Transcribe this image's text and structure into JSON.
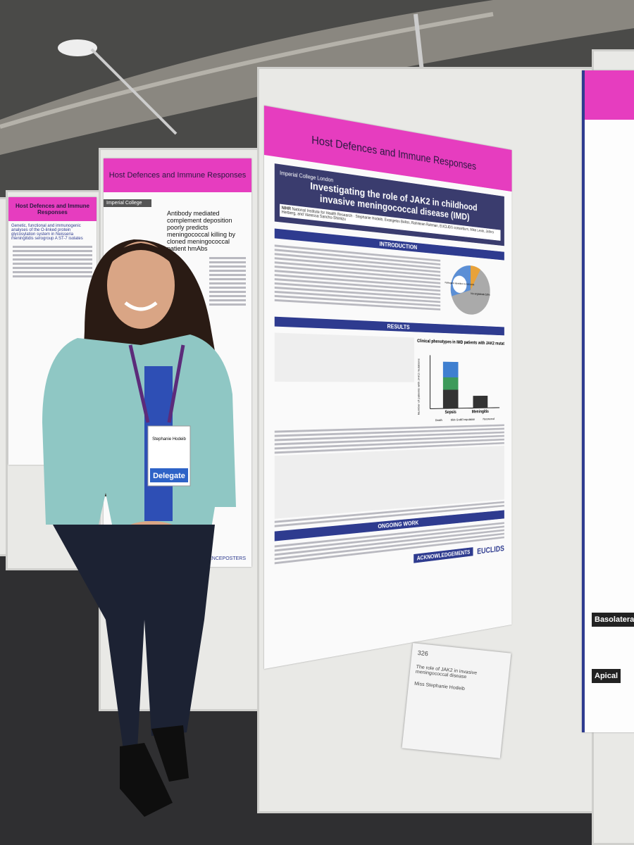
{
  "left_poster": {
    "banner": "Host Defences and Immune Responses",
    "title": "Genetic, functional and immunogenic analyses of the O-linked protein glycosylation system in Neisseria meningitidis serogroup A ST-7 isolates"
  },
  "middle_poster": {
    "banner": "Host Defences and Immune Responses",
    "institution": "Imperial College",
    "title": "Antibody mediated complement deposition poorly predicts meningococcal killing by cloned meningococcal patient hmAbs",
    "footer": "SCIENCEPOSTERS"
  },
  "main_poster": {
    "banner": "Host Defences and Immune Responses",
    "institution": "Imperial College London",
    "title_lines": [
      "Investigating the role of JAK2 in childhood",
      "invasive meningococcal disease (IMD)"
    ],
    "authors": "Stephanie Hodeib, Evangelos Bellos, Rahmeen Rahman, EUCLIDS consortium, Mike Levin, Jethro Herberg, and Vanessa Sancho-Shimizu",
    "funder": "NIHR",
    "funder_name": "National Institute for Health Research",
    "sections": [
      "INTRODUCTION",
      "RESULTS",
      "ONGOING WORK"
    ],
    "pie_label": "Pathogens identified in EUCLIDS",
    "pie_slice": "No organism 52%",
    "chart_title": "Clinical phenotypes in IMD patients with JAK2 mutations",
    "chart_y_label": "Number of patients with JAK2 mutations",
    "chart_categories": [
      "Sepsis",
      "Meningitis"
    ],
    "legend": [
      "Death",
      "Skin Graft/Amputation",
      "Recovered"
    ],
    "acknowledgements": "ACKNOWLEDGEMENTS",
    "logo": "EUCLIDS"
  },
  "right_poster": {
    "labels": [
      "Basolateral",
      "Apical"
    ]
  },
  "badge": {
    "name": "Stephanie Hodeib",
    "role": "Delegate"
  },
  "card": {
    "number": "326",
    "title": "The role of JAK2 in invasive meningococcal disease",
    "name": "Miss Stephanie Hodeib"
  }
}
